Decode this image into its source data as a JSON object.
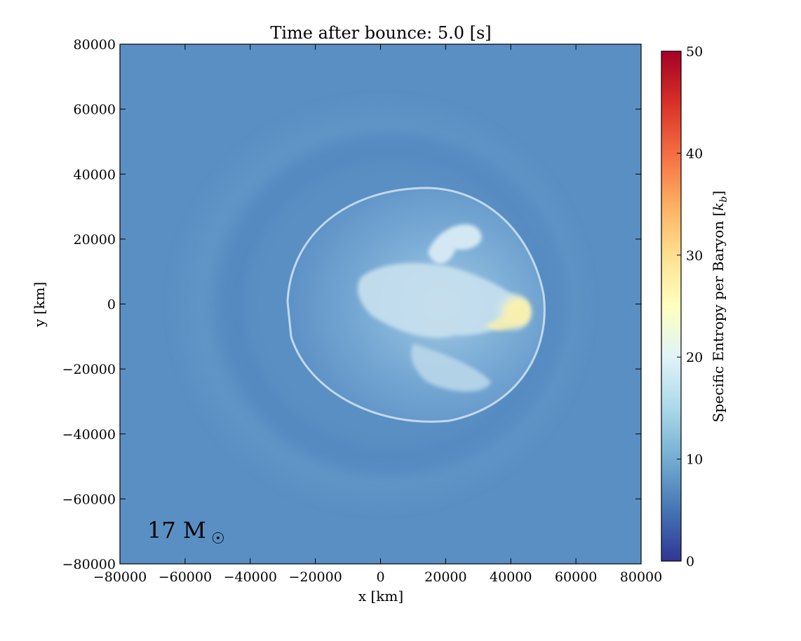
{
  "chart_data": {
    "type": "heatmap",
    "title": "Time after bounce: 5.0 [s]",
    "xlabel": "x [km]",
    "ylabel": "y [km]",
    "xlim": [
      -80000,
      80000
    ],
    "ylim": [
      -80000,
      80000
    ],
    "x_ticks": [
      -80000,
      -60000,
      -40000,
      -20000,
      0,
      20000,
      40000,
      60000,
      80000
    ],
    "y_ticks": [
      -80000,
      -60000,
      -40000,
      -20000,
      0,
      20000,
      40000,
      60000,
      80000
    ],
    "x_tick_labels": [
      "−80000",
      "−60000",
      "−40000",
      "−20000",
      "0",
      "20000",
      "40000",
      "60000",
      "80000"
    ],
    "y_tick_labels": [
      "−80000",
      "−60000",
      "−40000",
      "−20000",
      "0",
      "20000",
      "40000",
      "60000",
      "80000"
    ],
    "colorbar": {
      "label": "Specific Entropy per Baryon [k_b]",
      "label_main": "Specific Entropy per Baryon [",
      "label_sym": "k",
      "label_sub": "b",
      "label_close": "]",
      "range": [
        0,
        50
      ],
      "ticks": [
        0,
        10,
        20,
        30,
        40,
        50
      ],
      "tick_labels": [
        "0",
        "10",
        "20",
        "30",
        "40",
        "50"
      ],
      "colormap": "RdYlBu_r"
    },
    "annotation": {
      "text": "17 M",
      "symbol": "☉",
      "position": "bottom-left"
    },
    "background_entropy": 9,
    "features": [
      {
        "name": "shock-front",
        "center": [
          13000,
          0
        ],
        "extent_x": [
          -30000,
          51000
        ],
        "extent_y": [
          -37000,
          35000
        ],
        "entropy": 13
      },
      {
        "name": "outer-shell",
        "center": [
          0,
          0
        ],
        "radius": 62000,
        "entropy": 10
      },
      {
        "name": "hot-plume",
        "center": [
          40000,
          -2000
        ],
        "entropy": 28
      },
      {
        "name": "turbulent-core",
        "center": [
          5000,
          5000
        ],
        "entropy": 16
      },
      {
        "name": "upper-plume",
        "center": [
          20000,
          20000
        ],
        "entropy": 15
      },
      {
        "name": "lower-plume",
        "center": [
          25000,
          -20000
        ],
        "entropy": 14
      }
    ]
  }
}
